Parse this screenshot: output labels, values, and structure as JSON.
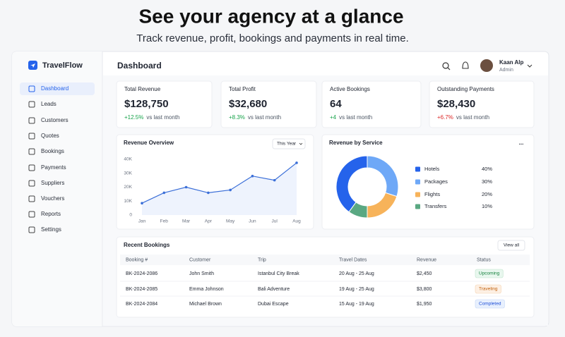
{
  "header": {
    "title": "See your agency at a glance",
    "subtitle": "Track revenue, profit, bookings and payments in real time."
  },
  "app": {
    "brand": "TravelFlow",
    "nav": [
      "Dashboard",
      "Leads",
      "Customers",
      "Quotes",
      "Bookings",
      "Payments",
      "Suppliers",
      "Vouchers",
      "Reports",
      "Settings"
    ],
    "page_title": "Dashboard",
    "user": {
      "name": "Kaan Alp",
      "role": "Admin"
    }
  },
  "stats": [
    {
      "label": "Total Revenue",
      "value": "$128,750",
      "change": "+12.5%",
      "note": "vs last month",
      "color": "#16a34a"
    },
    {
      "label": "Total Profit",
      "value": "$32,680",
      "change": "+8.3%",
      "note": "vs last month",
      "color": "#16a34a"
    },
    {
      "label": "Active Bookings",
      "value": "64",
      "change": "+4",
      "note": "vs last month",
      "color": "#16a34a"
    },
    {
      "label": "Outstanding Payments",
      "value": "$28,430",
      "change": "+6.7%",
      "note": "vs last month",
      "color": "#dc2626"
    }
  ],
  "chart_data": [
    {
      "type": "line",
      "title": "Revenue Overview",
      "filter": "This Year",
      "categories": [
        "Jan",
        "Feb",
        "Mar",
        "Apr",
        "May",
        "Jun",
        "Jul",
        "Aug"
      ],
      "values": [
        8500,
        16000,
        20000,
        16000,
        18000,
        28000,
        25000,
        37500
      ],
      "color": "#3b6fd8",
      "ylim": [
        0,
        40000
      ],
      "yticks": [
        0,
        {
          "value": 10000,
          "label": "10K"
        },
        {
          "value": 20000,
          "label": "20K"
        },
        {
          "value": 30000,
          "label": "30K"
        },
        {
          "value": 40000,
          "label": "40K"
        }
      ],
      "grid": false
    },
    {
      "type": "pie",
      "title": "Revenue by Service",
      "menu": "...",
      "categories": [
        "Hotels",
        "Packages",
        "Flights",
        "Transfers"
      ],
      "values": [
        40,
        30,
        20,
        10
      ],
      "value_labels": [
        "40%",
        "30%",
        "20%",
        "10%"
      ],
      "colors": [
        "#2563eb",
        "#6ea8f7",
        "#f7b35a",
        "#5aa882"
      ]
    }
  ],
  "bookings": {
    "title": "Recent Bookings",
    "action": "View all",
    "columns": [
      "Booking #",
      "Customer",
      "Trip",
      "Travel Dates",
      "Revenue",
      "Status"
    ],
    "rows": [
      [
        "BK-2024-2086",
        "John Smith",
        "Istanbul City Break",
        "20 Aug - 25 Aug",
        "$2,450",
        "Upcoming"
      ],
      [
        "BK-2024-2085",
        "Emma Johnson",
        "Bali Adventure",
        "19 Aug - 25 Aug",
        "$3,800",
        "Traveling"
      ],
      [
        "BK-2024-2084",
        "Michael Brown",
        "Dubai Escape",
        "15 Aug - 19 Aug",
        "$1,950",
        "Completed"
      ]
    ]
  }
}
